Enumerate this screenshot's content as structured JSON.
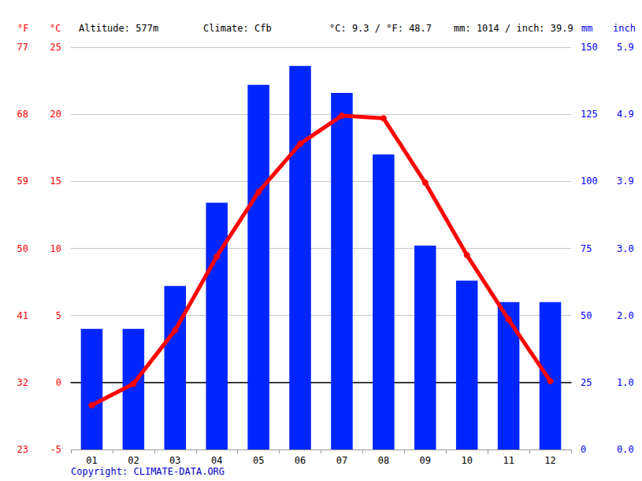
{
  "header": [
    "Altitude: 577m",
    "Climate: Cfb",
    "°C: 9.3 / °F: 48.7",
    "mm: 1014 / inch: 39.9"
  ],
  "footer": "Copyright: CLIMATE-DATA.ORG",
  "chart_data": {
    "type": "bar",
    "categories": [
      "01",
      "02",
      "03",
      "04",
      "05",
      "06",
      "07",
      "08",
      "09",
      "10",
      "11",
      "12"
    ],
    "series": [
      {
        "type": "bar",
        "axis": "y2",
        "color": "#0026ff",
        "values": [
          45,
          45,
          61,
          92,
          136,
          143,
          133,
          110,
          76,
          63,
          55,
          55
        ]
      },
      {
        "type": "line",
        "color": "#ff0000",
        "marker": "circle",
        "values": [
          -1.7,
          -0.1,
          3.9,
          9.4,
          14.2,
          17.8,
          19.9,
          19.7,
          14.9,
          9.5,
          4.7,
          0.1
        ]
      }
    ],
    "ylabel": "°C",
    "ylim": [
      -5,
      25
    ],
    "yticks": [
      -5,
      0,
      5,
      10,
      15,
      20,
      25
    ],
    "y2label": "mm",
    "y2lim": [
      0,
      150
    ],
    "y2ticks": [
      0,
      25,
      50,
      75,
      100,
      125,
      150
    ],
    "y3label": "°F",
    "y3lim": [
      23,
      77
    ],
    "y3ticks": [
      23,
      32,
      41,
      50,
      59,
      68,
      77
    ],
    "y4label": "inch",
    "y4lim": [
      0,
      5.906
    ],
    "y4ticks": [
      {
        "value": 0,
        "label": "0.0"
      },
      {
        "value": 0.984,
        "label": "1.0"
      },
      {
        "value": 1.969,
        "label": "2.0"
      },
      {
        "value": 2.953,
        "label": "3.0"
      },
      {
        "value": 3.937,
        "label": "3.9"
      },
      {
        "value": 4.921,
        "label": "4.9"
      },
      {
        "value": 5.906,
        "label": "5.9"
      }
    ],
    "grid": true
  }
}
